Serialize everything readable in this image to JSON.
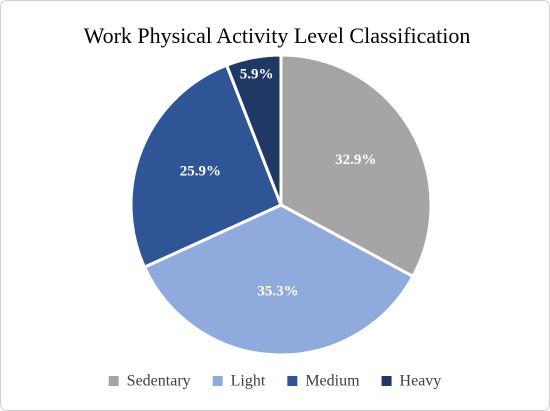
{
  "chart_data": {
    "type": "pie",
    "title": "Work Physical Activity Level Classification",
    "categories": [
      "Sedentary",
      "Light",
      "Medium",
      "Heavy"
    ],
    "values": [
      32.9,
      35.3,
      25.9,
      5.9
    ],
    "value_labels": [
      "32.9%",
      "35.3%",
      "25.9%",
      "5.9%"
    ],
    "colors": [
      "#a5a5a5",
      "#8faadc",
      "#2f5597",
      "#203864"
    ],
    "legend": "bottom"
  }
}
